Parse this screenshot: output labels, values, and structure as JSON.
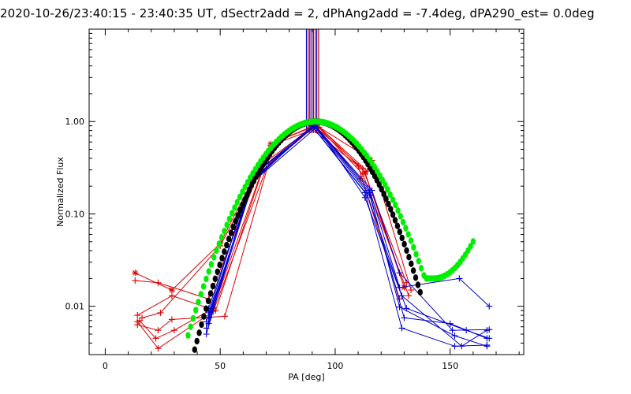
{
  "chart_data": {
    "type": "line",
    "title": "2020-10-26/23:40:15 - 23:40:35 UT, dSectr2add = 2, dPhAng2add = -7.4deg, dPA290_est=  0.0deg",
    "xlabel": "PA [deg]",
    "ylabel": "Normalized Flux",
    "xlim": [
      -7,
      182
    ],
    "ylim": [
      0.003,
      10
    ],
    "yscale": "log",
    "x_ticks": [
      0,
      50,
      100,
      150
    ],
    "y_ticks": [
      {
        "value": 0.01,
        "label": "0.01"
      },
      {
        "value": 0.1,
        "label": "0.10"
      },
      {
        "value": 1.0,
        "label": "1.00"
      }
    ],
    "vertical_markers": [
      {
        "x": 87.5,
        "color": "#0000cc"
      },
      {
        "x": 88.3,
        "color": "#cc0000"
      },
      {
        "x": 89.0,
        "color": "#0000cc"
      },
      {
        "x": 89.8,
        "color": "#cc0000"
      },
      {
        "x": 90.5,
        "color": "#0000cc"
      },
      {
        "x": 91.3,
        "color": "#cc0000"
      },
      {
        "x": 92.0,
        "color": "#0000cc"
      },
      {
        "x": 92.8,
        "color": "#cc0000"
      }
    ],
    "series": [
      {
        "name": "red-1",
        "color": "#dd0000",
        "marker": "asterisk",
        "x": [
          13,
          29,
          50,
          72,
          92,
          113,
          130
        ],
        "y": [
          0.023,
          0.015,
          0.048,
          0.57,
          0.93,
          0.28,
          0.016
        ]
      },
      {
        "name": "red-2",
        "color": "#dd0000",
        "marker": "plus",
        "x": [
          13,
          23,
          45,
          68,
          91,
          112,
          131
        ],
        "y": [
          0.019,
          0.018,
          0.012,
          0.34,
          0.9,
          0.31,
          0.018
        ]
      },
      {
        "name": "red-3",
        "color": "#dd0000",
        "marker": "plus",
        "x": [
          14,
          29,
          48,
          72,
          93,
          116,
          133
        ],
        "y": [
          0.008,
          0.013,
          0.009,
          0.55,
          0.87,
          0.38,
          0.015
        ]
      },
      {
        "name": "red-4",
        "color": "#dd0000",
        "marker": "plus",
        "x": [
          16,
          24,
          50,
          74,
          92,
          112,
          132
        ],
        "y": [
          0.0075,
          0.0085,
          0.045,
          0.6,
          0.91,
          0.27,
          0.013
        ]
      },
      {
        "name": "red-5",
        "color": "#dd0000",
        "marker": "plus",
        "x": [
          14,
          23,
          29,
          52,
          71,
          92,
          114
        ],
        "y": [
          0.0063,
          0.0055,
          0.0072,
          0.0078,
          0.35,
          0.92,
          0.29
        ]
      },
      {
        "name": "red-6",
        "color": "#dd0000",
        "marker": "plus",
        "x": [
          15,
          22,
          30,
          47,
          68,
          91,
          111
        ],
        "y": [
          0.007,
          0.0045,
          0.0055,
          0.0095,
          0.29,
          0.88,
          0.24
        ]
      },
      {
        "name": "red-7",
        "color": "#dd0000",
        "marker": "plus",
        "x": [
          14,
          23,
          47,
          70,
          89,
          110,
          128
        ],
        "y": [
          0.0068,
          0.0035,
          0.0088,
          0.31,
          0.86,
          0.33,
          0.012
        ]
      },
      {
        "name": "blue-1",
        "color": "#0000cc",
        "marker": "plus",
        "x": [
          44,
          64,
          91,
          115,
          130,
          150,
          166
        ],
        "y": [
          0.005,
          0.26,
          0.88,
          0.16,
          0.0075,
          0.0065,
          0.0045
        ]
      },
      {
        "name": "blue-2",
        "color": "#0000cc",
        "marker": "plus",
        "x": [
          45,
          65,
          91,
          116,
          128,
          151,
          167
        ],
        "y": [
          0.0065,
          0.25,
          0.92,
          0.18,
          0.023,
          0.0055,
          0.0056
        ]
      },
      {
        "name": "blue-3",
        "color": "#0000cc",
        "marker": "plus",
        "x": [
          44,
          64,
          90,
          113,
          129,
          152,
          166
        ],
        "y": [
          0.0058,
          0.23,
          0.89,
          0.17,
          0.0058,
          0.0037,
          0.0038
        ]
      },
      {
        "name": "blue-4",
        "color": "#0000cc",
        "marker": "plus",
        "x": [
          45,
          63,
          92,
          113,
          131,
          157,
          167
        ],
        "y": [
          0.0095,
          0.21,
          0.87,
          0.15,
          0.0095,
          0.0055,
          0.0045
        ]
      },
      {
        "name": "blue-5",
        "color": "#0000cc",
        "marker": "plus",
        "x": [
          45,
          64,
          90,
          114,
          129,
          155,
          166
        ],
        "y": [
          0.0075,
          0.22,
          0.9,
          0.16,
          0.013,
          0.0037,
          0.0055
        ]
      },
      {
        "name": "blue-6",
        "color": "#0000cc",
        "marker": "plus",
        "x": [
          44,
          65,
          91,
          115,
          128,
          152,
          166
        ],
        "y": [
          0.0068,
          0.24,
          0.91,
          0.17,
          0.0098,
          0.0048,
          0.0037
        ]
      },
      {
        "name": "blue-7",
        "color": "#0000cc",
        "marker": "plus",
        "x": [
          45,
          64,
          91,
          115,
          128,
          154,
          167
        ],
        "y": [
          0.0085,
          0.26,
          0.93,
          0.18,
          0.016,
          0.02,
          0.01
        ]
      }
    ],
    "fit_curves": [
      {
        "name": "black-gaussian-fit",
        "color": "#000000",
        "marker": "dot",
        "x_range": [
          28,
          137
        ],
        "center": 91.5,
        "sigma": 15.6,
        "amplitude": 1.0
      },
      {
        "name": "green-fit",
        "color": "#00ee00",
        "marker": "dot",
        "x_range": [
          36,
          160
        ],
        "center": 91.5,
        "sigma": 17.0,
        "amplitude": 1.0,
        "tail_min": 0.02,
        "tail_min_x": 143
      }
    ]
  }
}
